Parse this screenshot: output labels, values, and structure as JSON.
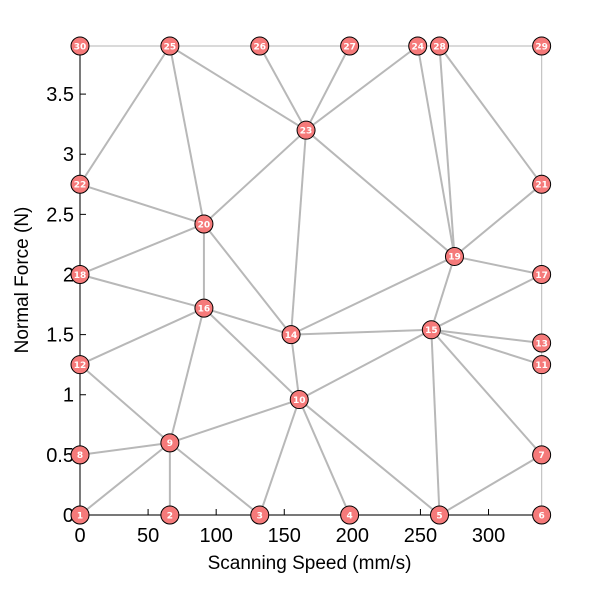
{
  "chart_data": {
    "type": "network",
    "xlabel": "Scanning Speed (mm/s)",
    "ylabel": "Normal Force (N)",
    "xlim": [
      0,
      340
    ],
    "ylim": [
      0,
      3.9
    ],
    "x_ticks": [
      {
        "value": 0,
        "label": "0"
      },
      {
        "value": 50,
        "label": "50"
      },
      {
        "value": 100,
        "label": "100"
      },
      {
        "value": 150,
        "label": "150"
      },
      {
        "value": 200,
        "label": "200"
      },
      {
        "value": 250,
        "label": "250"
      },
      {
        "value": 300,
        "label": "300"
      }
    ],
    "y_ticks": [
      {
        "value": 0,
        "label": "0"
      },
      {
        "value": 0.5,
        "label": "0.5"
      },
      {
        "value": 1,
        "label": "1"
      },
      {
        "value": 1.5,
        "label": "1.5"
      },
      {
        "value": 2,
        "label": "2"
      },
      {
        "value": 2.5,
        "label": "2.5"
      },
      {
        "value": 3,
        "label": "3"
      },
      {
        "value": 3.5,
        "label": "3.5"
      }
    ],
    "node_color": "#f57a7a",
    "edge_color": "#b8b8b8",
    "nodes": [
      {
        "id": "1",
        "x": 0,
        "y": 0
      },
      {
        "id": "2",
        "x": 66,
        "y": 0
      },
      {
        "id": "3",
        "x": 132,
        "y": 0
      },
      {
        "id": "4",
        "x": 198,
        "y": 0
      },
      {
        "id": "5",
        "x": 264,
        "y": 0
      },
      {
        "id": "6",
        "x": 339,
        "y": 0
      },
      {
        "id": "7",
        "x": 339,
        "y": 0.5
      },
      {
        "id": "8",
        "x": 0,
        "y": 0.5
      },
      {
        "id": "9",
        "x": 66,
        "y": 0.6
      },
      {
        "id": "10",
        "x": 161,
        "y": 0.96
      },
      {
        "id": "11",
        "x": 339,
        "y": 1.25
      },
      {
        "id": "12",
        "x": 0,
        "y": 1.25
      },
      {
        "id": "13",
        "x": 339,
        "y": 1.43
      },
      {
        "id": "14",
        "x": 155,
        "y": 1.5
      },
      {
        "id": "15",
        "x": 258,
        "y": 1.54
      },
      {
        "id": "16",
        "x": 91,
        "y": 1.72
      },
      {
        "id": "17",
        "x": 339,
        "y": 2.0
      },
      {
        "id": "18",
        "x": 0,
        "y": 2.0
      },
      {
        "id": "19",
        "x": 275,
        "y": 2.15
      },
      {
        "id": "20",
        "x": 91,
        "y": 2.42
      },
      {
        "id": "21",
        "x": 339,
        "y": 2.75
      },
      {
        "id": "22",
        "x": 0,
        "y": 2.75
      },
      {
        "id": "23",
        "x": 166,
        "y": 3.2
      },
      {
        "id": "24",
        "x": 248,
        "y": 3.9
      },
      {
        "id": "25",
        "x": 66,
        "y": 3.9
      },
      {
        "id": "26",
        "x": 132,
        "y": 3.9
      },
      {
        "id": "27",
        "x": 198,
        "y": 3.9
      },
      {
        "id": "28",
        "x": 264,
        "y": 3.9
      },
      {
        "id": "29",
        "x": 339,
        "y": 3.9
      },
      {
        "id": "30",
        "x": 0,
        "y": 3.9
      }
    ],
    "boundary": [
      "1",
      "2",
      "3",
      "4",
      "5",
      "6",
      "7",
      "11",
      "13",
      "17",
      "21",
      "29",
      "28",
      "24",
      "27",
      "26",
      "25",
      "30",
      "22",
      "18",
      "12",
      "8",
      "1"
    ],
    "edges": [
      [
        "8",
        "9"
      ],
      [
        "1",
        "9"
      ],
      [
        "2",
        "9"
      ],
      [
        "3",
        "9"
      ],
      [
        "9",
        "10"
      ],
      [
        "9",
        "16"
      ],
      [
        "9",
        "12"
      ],
      [
        "3",
        "10"
      ],
      [
        "4",
        "10"
      ],
      [
        "5",
        "10"
      ],
      [
        "10",
        "15"
      ],
      [
        "10",
        "14"
      ],
      [
        "10",
        "16"
      ],
      [
        "12",
        "16"
      ],
      [
        "16",
        "18"
      ],
      [
        "16",
        "14"
      ],
      [
        "16",
        "20"
      ],
      [
        "18",
        "20"
      ],
      [
        "20",
        "22"
      ],
      [
        "20",
        "25"
      ],
      [
        "20",
        "23"
      ],
      [
        "20",
        "14"
      ],
      [
        "22",
        "25"
      ],
      [
        "25",
        "23"
      ],
      [
        "26",
        "23"
      ],
      [
        "27",
        "23"
      ],
      [
        "24",
        "23"
      ],
      [
        "23",
        "14"
      ],
      [
        "23",
        "19"
      ],
      [
        "14",
        "15"
      ],
      [
        "14",
        "19"
      ],
      [
        "15",
        "19"
      ],
      [
        "15",
        "17"
      ],
      [
        "15",
        "13"
      ],
      [
        "15",
        "11"
      ],
      [
        "15",
        "7"
      ],
      [
        "15",
        "5"
      ],
      [
        "5",
        "7"
      ],
      [
        "19",
        "17"
      ],
      [
        "19",
        "21"
      ],
      [
        "19",
        "28"
      ],
      [
        "19",
        "24"
      ],
      [
        "28",
        "21"
      ]
    ]
  }
}
